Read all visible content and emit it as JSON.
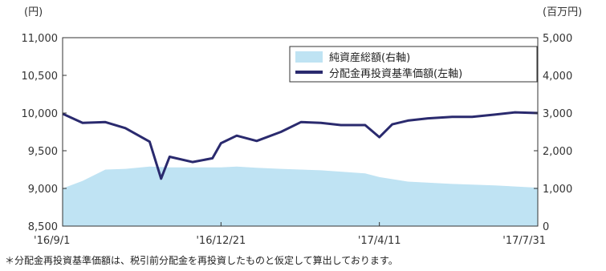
{
  "chart_data": {
    "type": "line",
    "left_unit": "(円)",
    "right_unit": "(百万円)",
    "left_axis": {
      "ylim": [
        8500,
        11000
      ],
      "ticks": [
        "11,000",
        "10,500",
        "10,000",
        "9,500",
        "9,000",
        "8,500"
      ],
      "tick_values": [
        11000,
        10500,
        10000,
        9500,
        9000,
        8500
      ]
    },
    "right_axis": {
      "ylim": [
        0,
        5000
      ],
      "ticks": [
        "5,000",
        "4,000",
        "3,000",
        "2,000",
        "1,000",
        "0"
      ],
      "tick_values": [
        5000,
        4000,
        3000,
        2000,
        1000,
        0
      ]
    },
    "x_labels": [
      "'16/9/1",
      "'16/12/21",
      "'17/4/11",
      "'17/7/31"
    ],
    "x_range": [
      "2016-09-01",
      "2017-07-31"
    ],
    "legend": {
      "net_assets": "純資産総額(右軸)",
      "nav": "分配金再投資基準価額(左軸)"
    },
    "colors": {
      "net_assets": "#bfe3f3",
      "nav": "#2a2a6e",
      "frame": "#333333"
    },
    "series": [
      {
        "name": "分配金再投資基準価額(左軸)",
        "axis": "left",
        "x": [
          "2016-09-01",
          "2016-09-15",
          "2016-10-01",
          "2016-10-15",
          "2016-11-01",
          "2016-11-09",
          "2016-11-15",
          "2016-12-01",
          "2016-12-15",
          "2016-12-21",
          "2017-01-01",
          "2017-01-15",
          "2017-02-01",
          "2017-02-15",
          "2017-03-01",
          "2017-03-15",
          "2017-04-01",
          "2017-04-11",
          "2017-04-20",
          "2017-05-01",
          "2017-05-15",
          "2017-06-01",
          "2017-06-15",
          "2017-07-01",
          "2017-07-15",
          "2017-07-31"
        ],
        "values": [
          9990,
          9870,
          9880,
          9800,
          9620,
          9130,
          9420,
          9350,
          9400,
          9600,
          9700,
          9630,
          9750,
          9880,
          9870,
          9840,
          9840,
          9680,
          9850,
          9900,
          9930,
          9950,
          9950,
          9980,
          10010,
          10000
        ]
      },
      {
        "name": "純資産総額(右軸)",
        "axis": "right",
        "x": [
          "2016-09-01",
          "2016-09-15",
          "2016-10-01",
          "2016-10-15",
          "2016-11-01",
          "2016-11-15",
          "2016-12-01",
          "2016-12-21",
          "2017-01-01",
          "2017-01-15",
          "2017-02-01",
          "2017-03-01",
          "2017-04-01",
          "2017-04-11",
          "2017-05-01",
          "2017-06-01",
          "2017-07-01",
          "2017-07-31"
        ],
        "values": [
          1000,
          1200,
          1500,
          1520,
          1580,
          1560,
          1560,
          1560,
          1580,
          1550,
          1520,
          1480,
          1400,
          1300,
          1180,
          1120,
          1080,
          1020
        ]
      }
    ]
  },
  "footnote": "＊分配金再投資基準価額は、税引前分配金を再投資したものと仮定して算出しております。"
}
